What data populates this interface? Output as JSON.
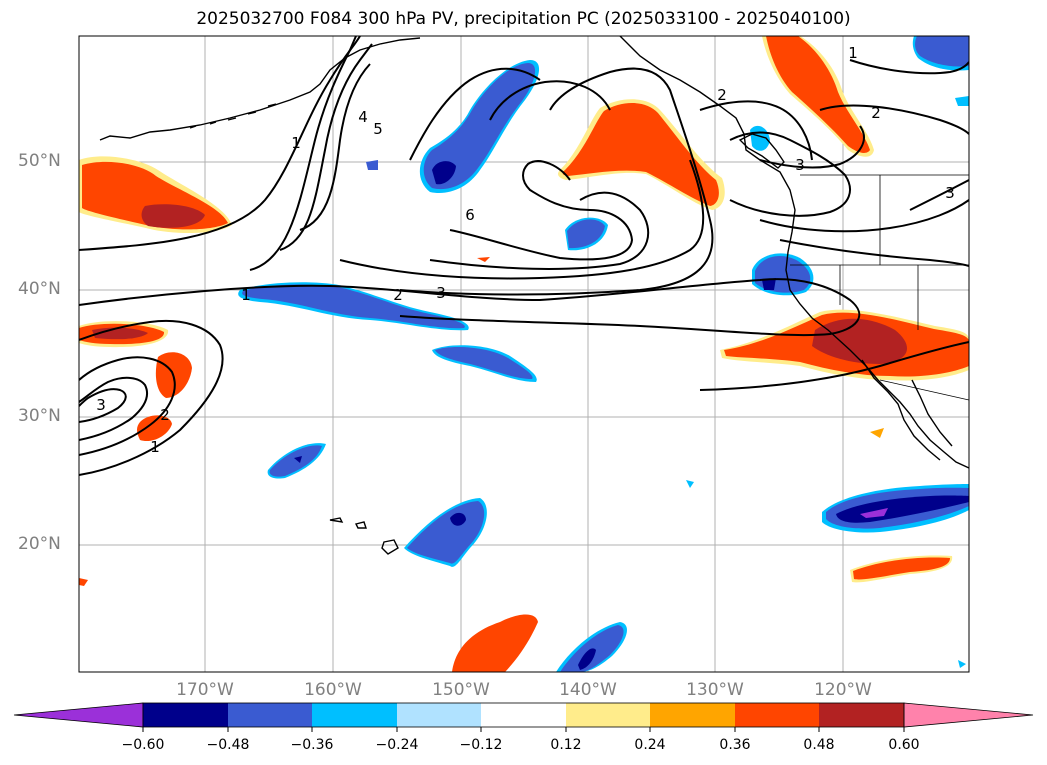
{
  "title": "2025032700 F084 300 hPa PV, precipitation PC (2025033100 - 2025040100)",
  "longitude_labels": [
    {
      "lon": -170,
      "label": "170°W"
    },
    {
      "lon": -160,
      "label": "160°W"
    },
    {
      "lon": -150,
      "label": "150°W"
    },
    {
      "lon": -140,
      "label": "140°W"
    },
    {
      "lon": -130,
      "label": "130°W"
    },
    {
      "lon": -120,
      "label": "120°W"
    }
  ],
  "latitude_labels": [
    {
      "lat": 50,
      "label": "50°N"
    },
    {
      "lat": 40,
      "label": "40°N"
    },
    {
      "lat": 30,
      "label": "30°N"
    },
    {
      "lat": 20,
      "label": "20°N"
    }
  ],
  "colorbar": {
    "ticks": [
      "−0.60",
      "−0.48",
      "−0.36",
      "−0.24",
      "−0.12",
      "0.12",
      "0.24",
      "0.36",
      "0.48",
      "0.60"
    ],
    "colors": {
      "under": "#9b30d9",
      "c1": "#00008b",
      "c2": "#3a5bd1",
      "c3": "#00bfff",
      "c4": "#b0e2ff",
      "c5": "#ffffff",
      "c6": "#ffec8b",
      "c7": "#ffa500",
      "c8": "#ff4500",
      "c9": "#b22222",
      "over": "#ff82ab"
    }
  },
  "contour_labels": [
    "1",
    "2",
    "3",
    "4",
    "5",
    "6",
    "1",
    "2",
    "3",
    "1",
    "2",
    "3",
    "1",
    "2",
    "3"
  ]
}
